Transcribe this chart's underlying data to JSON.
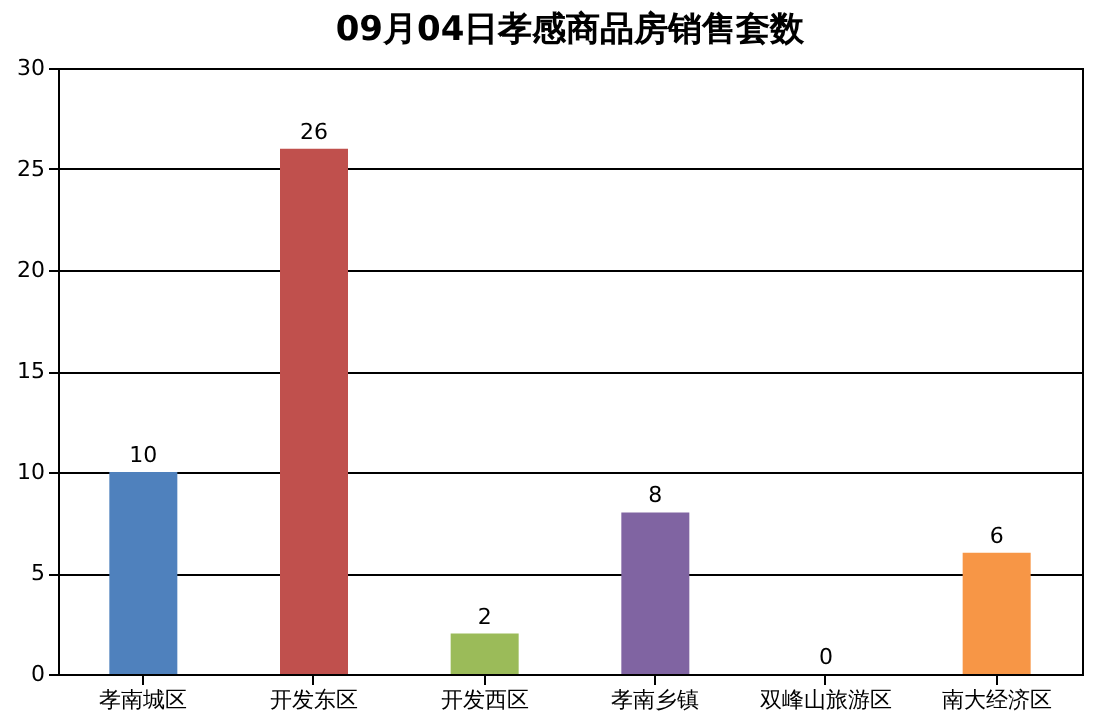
{
  "chart_data": {
    "type": "bar",
    "title": "09月04日孝感商品房销售套数",
    "categories": [
      "孝南城区",
      "开发东区",
      "开发西区",
      "孝南乡镇",
      "双峰山旅游区",
      "南大经济区"
    ],
    "values": [
      10,
      26,
      2,
      8,
      0,
      6
    ],
    "colors": [
      "#4f81bd",
      "#c0504d",
      "#9bbb59",
      "#8064a2",
      "#4bacc6",
      "#f79646"
    ],
    "ylim": [
      0,
      30
    ],
    "yticks": [
      0,
      5,
      10,
      15,
      20,
      25,
      30
    ],
    "grid": "y",
    "data_labels": true
  }
}
